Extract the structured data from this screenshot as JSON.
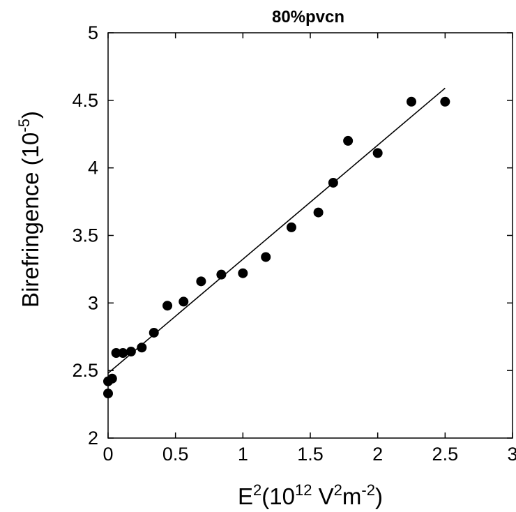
{
  "chart_data": {
    "type": "scatter",
    "title": "80%pvcn",
    "xlabel": {
      "base": "E",
      "sup1": "2",
      "mid": "(10",
      "sup2": "12",
      "mid2": " V",
      "sup3": "2",
      "mid3": "m",
      "sup4": "-2",
      "end": ")"
    },
    "ylabel": {
      "base": "Birefringence (10",
      "sup": "-5",
      "end": ")"
    },
    "xlim": [
      0,
      3
    ],
    "ylim": [
      2,
      5
    ],
    "xticks": [
      0,
      0.5,
      1,
      1.5,
      2,
      2.5,
      3
    ],
    "xtick_labels": [
      "0",
      "0.5",
      "1",
      "1.5",
      "2",
      "2.5",
      "3"
    ],
    "yticks": [
      2,
      2.5,
      3,
      3.5,
      4,
      4.5,
      5
    ],
    "ytick_labels": [
      "2",
      "2.5",
      "3",
      "3.5",
      "4",
      "4.5",
      "5"
    ],
    "grid": false,
    "series": [
      {
        "kind": "points",
        "color": "#000000",
        "points": [
          {
            "x": 0.0,
            "y": 2.33
          },
          {
            "x": 0.0,
            "y": 2.42
          },
          {
            "x": 0.03,
            "y": 2.44
          },
          {
            "x": 0.06,
            "y": 2.63
          },
          {
            "x": 0.11,
            "y": 2.63
          },
          {
            "x": 0.17,
            "y": 2.64
          },
          {
            "x": 0.25,
            "y": 2.67
          },
          {
            "x": 0.34,
            "y": 2.78
          },
          {
            "x": 0.44,
            "y": 2.98
          },
          {
            "x": 0.56,
            "y": 3.01
          },
          {
            "x": 0.69,
            "y": 3.16
          },
          {
            "x": 0.84,
            "y": 3.21
          },
          {
            "x": 1.0,
            "y": 3.22
          },
          {
            "x": 1.17,
            "y": 3.34
          },
          {
            "x": 1.36,
            "y": 3.56
          },
          {
            "x": 1.56,
            "y": 3.67
          },
          {
            "x": 1.67,
            "y": 3.89
          },
          {
            "x": 1.78,
            "y": 4.2
          },
          {
            "x": 2.0,
            "y": 4.11
          },
          {
            "x": 2.25,
            "y": 4.49
          },
          {
            "x": 2.5,
            "y": 4.49
          }
        ]
      },
      {
        "kind": "fit-line",
        "color": "#000000",
        "points": [
          {
            "x": 0.0,
            "y": 2.48
          },
          {
            "x": 2.5,
            "y": 4.59
          }
        ]
      }
    ]
  }
}
